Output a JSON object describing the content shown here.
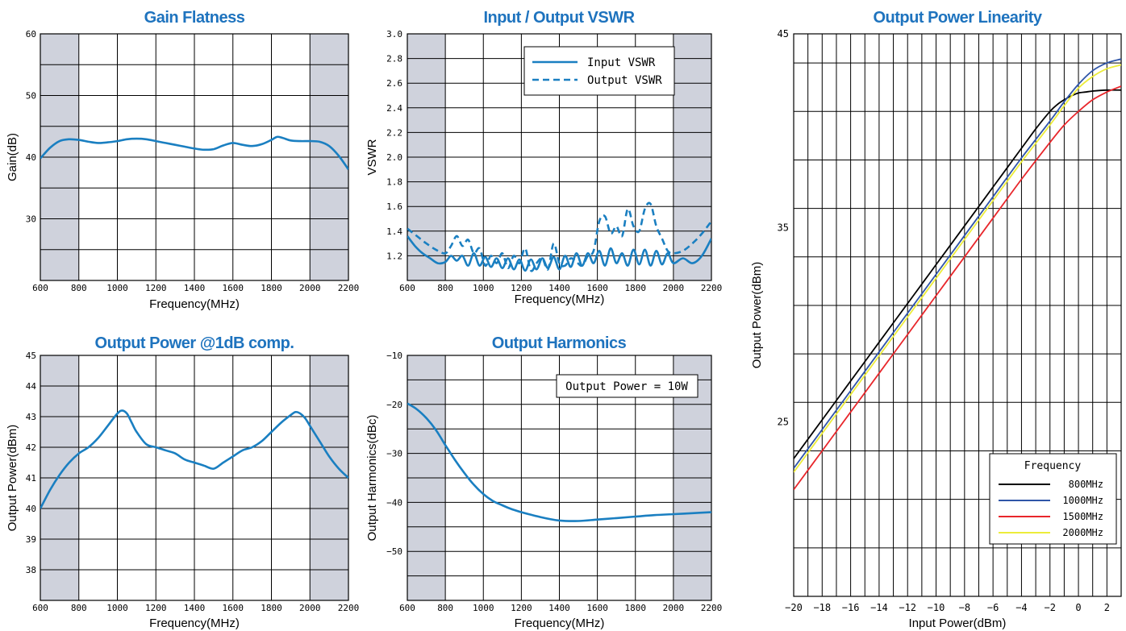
{
  "colors": {
    "title": "#1e73be",
    "line": "#1a7fc1",
    "shade": "#cfd2dc",
    "grid": "#000000",
    "s800": "#000000",
    "s1000": "#2f55a8",
    "s1500": "#e8262b",
    "s2000": "#ecec3a"
  },
  "chart_data": [
    {
      "type": "line",
      "title": "Gain Flatness",
      "xlabel": "Frequency(MHz)",
      "ylabel": "Gain(dB)",
      "xlim": [
        600,
        2200
      ],
      "ylim": [
        20,
        60
      ],
      "xticks": [
        600,
        800,
        1000,
        1200,
        1400,
        1600,
        1800,
        2000,
        2200
      ],
      "xtick_labels": [
        "600",
        "800",
        "1000",
        "1200",
        "1400",
        "1600",
        "1800",
        "2000",
        "2200"
      ],
      "yticks": [
        30,
        40,
        50,
        60
      ],
      "ytick_labels": [
        "30",
        "40",
        "50",
        "60"
      ],
      "grid_y_step": 5,
      "shaded_x": [
        [
          600,
          800
        ],
        [
          2000,
          2200
        ]
      ],
      "series": [
        {
          "dash": false,
          "x": [
            600,
            650,
            700,
            750,
            800,
            850,
            900,
            950,
            1000,
            1050,
            1100,
            1150,
            1200,
            1250,
            1300,
            1350,
            1400,
            1450,
            1500,
            1550,
            1600,
            1650,
            1700,
            1750,
            1800,
            1830,
            1860,
            1900,
            1950,
            2000,
            2050,
            2100,
            2150,
            2200
          ],
          "y": [
            39.8,
            41.5,
            42.6,
            42.9,
            42.8,
            42.5,
            42.3,
            42.4,
            42.6,
            42.9,
            43.0,
            42.9,
            42.6,
            42.3,
            42.0,
            41.7,
            41.4,
            41.2,
            41.3,
            41.9,
            42.3,
            42.0,
            41.8,
            42.1,
            42.8,
            43.3,
            43.1,
            42.7,
            42.6,
            42.6,
            42.5,
            41.8,
            40.2,
            38.0
          ]
        }
      ]
    },
    {
      "type": "line",
      "title": "Input / Output VSWR",
      "xlabel": "Frequency(MHz)",
      "ylabel": "VSWR",
      "xlim": [
        600,
        2200
      ],
      "ylim": [
        1.0,
        3.0
      ],
      "xticks": [
        600,
        800,
        1000,
        1200,
        1400,
        1600,
        1800,
        2000,
        2200
      ],
      "xtick_labels": [
        "600",
        "800",
        "1000",
        "1200",
        "1400",
        "1600",
        "1800",
        "2000",
        "2200"
      ],
      "yticks": [
        1.2,
        1.4,
        1.6,
        1.8,
        2.0,
        2.2,
        2.4,
        2.6,
        2.8,
        3.0
      ],
      "ytick_labels": [
        "1.2",
        "1.4",
        "1.6",
        "1.8",
        "2.0",
        "2.2",
        "2.4",
        "2.6",
        "2.8",
        "3.0"
      ],
      "grid_y_step": 0.2,
      "shaded_x": [
        [
          600,
          800
        ],
        [
          2000,
          2200
        ]
      ],
      "legend": {
        "position": "top-right"
      },
      "series": [
        {
          "name": "Input VSWR",
          "dash": false,
          "x": [
            600,
            640,
            680,
            720,
            760,
            800,
            830,
            860,
            890,
            920,
            950,
            980,
            1010,
            1040,
            1070,
            1100,
            1130,
            1160,
            1190,
            1220,
            1250,
            1280,
            1310,
            1340,
            1370,
            1400,
            1430,
            1460,
            1490,
            1520,
            1550,
            1580,
            1610,
            1640,
            1670,
            1700,
            1730,
            1760,
            1790,
            1820,
            1850,
            1880,
            1910,
            1940,
            1970,
            2000,
            2050,
            2100,
            2150,
            2200
          ],
          "y": [
            1.36,
            1.28,
            1.22,
            1.18,
            1.14,
            1.15,
            1.2,
            1.16,
            1.2,
            1.12,
            1.22,
            1.12,
            1.19,
            1.11,
            1.18,
            1.1,
            1.18,
            1.09,
            1.17,
            1.08,
            1.17,
            1.09,
            1.18,
            1.1,
            1.19,
            1.09,
            1.2,
            1.11,
            1.22,
            1.12,
            1.22,
            1.14,
            1.24,
            1.12,
            1.26,
            1.14,
            1.22,
            1.12,
            1.25,
            1.13,
            1.25,
            1.12,
            1.24,
            1.13,
            1.22,
            1.14,
            1.18,
            1.14,
            1.2,
            1.34
          ]
        },
        {
          "name": "Output VSWR",
          "dash": true,
          "x": [
            600,
            650,
            700,
            750,
            800,
            830,
            860,
            890,
            920,
            950,
            980,
            1010,
            1040,
            1070,
            1100,
            1130,
            1160,
            1190,
            1220,
            1250,
            1280,
            1310,
            1340,
            1370,
            1400,
            1430,
            1460,
            1490,
            1520,
            1550,
            1580,
            1610,
            1640,
            1670,
            1700,
            1730,
            1760,
            1790,
            1820,
            1850,
            1880,
            1910,
            1940,
            1970,
            2000,
            2050,
            2100,
            2150,
            2200
          ],
          "y": [
            1.42,
            1.36,
            1.3,
            1.25,
            1.22,
            1.28,
            1.36,
            1.28,
            1.33,
            1.22,
            1.26,
            1.12,
            1.2,
            1.14,
            1.22,
            1.1,
            1.2,
            1.14,
            1.26,
            1.08,
            1.14,
            1.18,
            1.09,
            1.3,
            1.14,
            1.12,
            1.18,
            1.15,
            1.12,
            1.2,
            1.24,
            1.48,
            1.52,
            1.38,
            1.44,
            1.36,
            1.58,
            1.44,
            1.4,
            1.58,
            1.62,
            1.44,
            1.34,
            1.24,
            1.22,
            1.24,
            1.3,
            1.38,
            1.48
          ]
        }
      ]
    },
    {
      "type": "line",
      "title": "Output Power @1dB comp.",
      "xlabel": "Frequency(MHz)",
      "ylabel": "Output Power(dBm)",
      "xlim": [
        600,
        2200
      ],
      "ylim": [
        37,
        45
      ],
      "xticks": [
        600,
        800,
        1000,
        1200,
        1400,
        1600,
        1800,
        2000,
        2200
      ],
      "xtick_labels": [
        "600",
        "800",
        "1000",
        "1200",
        "1400",
        "1600",
        "1800",
        "2000",
        "2200"
      ],
      "yticks": [
        38,
        39,
        40,
        41,
        42,
        43,
        44,
        45
      ],
      "ytick_labels": [
        "38",
        "39",
        "40",
        "41",
        "42",
        "43",
        "44",
        "45"
      ],
      "grid_y_step": 1,
      "shaded_x": [
        [
          600,
          800
        ],
        [
          2000,
          2200
        ]
      ],
      "series": [
        {
          "dash": false,
          "x": [
            600,
            650,
            700,
            750,
            800,
            850,
            900,
            950,
            1000,
            1025,
            1050,
            1075,
            1100,
            1150,
            1200,
            1250,
            1300,
            1350,
            1400,
            1450,
            1500,
            1550,
            1600,
            1650,
            1700,
            1750,
            1800,
            1850,
            1900,
            1925,
            1950,
            1975,
            2000,
            2050,
            2100,
            2150,
            2200
          ],
          "y": [
            40.0,
            40.6,
            41.1,
            41.5,
            41.8,
            42.0,
            42.3,
            42.7,
            43.1,
            43.2,
            43.1,
            42.8,
            42.5,
            42.1,
            42.0,
            41.9,
            41.8,
            41.6,
            41.5,
            41.4,
            41.3,
            41.5,
            41.7,
            41.9,
            42.0,
            42.2,
            42.5,
            42.8,
            43.05,
            43.15,
            43.1,
            42.95,
            42.7,
            42.2,
            41.7,
            41.3,
            41.0
          ]
        }
      ]
    },
    {
      "type": "line",
      "title": "Output Harmonics",
      "xlabel": "Frequency(MHz)",
      "ylabel": "Output Harmonics(dBc)",
      "xlim": [
        600,
        2200
      ],
      "ylim": [
        -60,
        -10
      ],
      "xticks": [
        600,
        800,
        1000,
        1200,
        1400,
        1600,
        1800,
        2000,
        2200
      ],
      "xtick_labels": [
        "600",
        "800",
        "1000",
        "1200",
        "1400",
        "1600",
        "1800",
        "2000",
        "2200"
      ],
      "yticks": [
        -50,
        -40,
        -30,
        -20,
        -10
      ],
      "ytick_labels": [
        "−50",
        "−40",
        "−30",
        "−20",
        "−10"
      ],
      "grid_y_step": 5,
      "shaded_x": [
        [
          600,
          800
        ],
        [
          2000,
          2200
        ]
      ],
      "annotation": "Output Power = 10W",
      "series": [
        {
          "dash": false,
          "x": [
            600,
            650,
            700,
            750,
            800,
            850,
            900,
            950,
            1000,
            1050,
            1100,
            1150,
            1200,
            1300,
            1400,
            1500,
            1600,
            1700,
            1800,
            1900,
            2000,
            2100,
            2200
          ],
          "y": [
            -19.8,
            -21.0,
            -22.8,
            -25.2,
            -28.3,
            -31.3,
            -34.0,
            -36.4,
            -38.3,
            -39.7,
            -40.6,
            -41.4,
            -42.0,
            -43.0,
            -43.7,
            -43.8,
            -43.5,
            -43.2,
            -42.9,
            -42.6,
            -42.4,
            -42.2,
            -42.0
          ]
        }
      ]
    },
    {
      "type": "line",
      "title": "Output Power Linearity",
      "xlabel": "Input Power(dBm)",
      "ylabel": "Output Power(dBm)",
      "xlim": [
        -20,
        3
      ],
      "ylim": [
        16,
        45
      ],
      "xticks": [
        -20,
        -18,
        -16,
        -14,
        -12,
        -10,
        -8,
        -6,
        -4,
        -2,
        0,
        2
      ],
      "xtick_labels": [
        "−20",
        "−18",
        "−16",
        "−14",
        "−12",
        "−10",
        "−8",
        "−6",
        "−4",
        "−2",
        "0",
        "2"
      ],
      "yticks": [
        25,
        35,
        45
      ],
      "ytick_labels": [
        "25",
        "35",
        "45"
      ],
      "grid_x_step": 1,
      "grid_y_step": 2.5,
      "legend": {
        "title": "Frequency",
        "position": "bottom-right"
      },
      "series": [
        {
          "name": "800MHz",
          "dash": false,
          "color_key": "s800",
          "x": [
            -20,
            -18,
            -16,
            -14,
            -12,
            -10,
            -8,
            -6,
            -4,
            -3,
            -2,
            -1.5,
            -1,
            -0.5,
            0,
            0.5,
            1,
            2,
            3
          ],
          "y": [
            23.1,
            25.1,
            27.1,
            29.1,
            31.1,
            33.1,
            35.1,
            37.1,
            39.1,
            40.1,
            41.0,
            41.35,
            41.6,
            41.8,
            41.95,
            42.0,
            42.05,
            42.1,
            42.1
          ]
        },
        {
          "name": "1000MHz",
          "dash": false,
          "color_key": "s1000",
          "x": [
            -20,
            -18,
            -16,
            -14,
            -12,
            -10,
            -8,
            -6,
            -4,
            -2,
            -1,
            0,
            1,
            2,
            3
          ],
          "y": [
            22.6,
            24.6,
            26.6,
            28.6,
            30.6,
            32.6,
            34.6,
            36.6,
            38.6,
            40.5,
            41.5,
            42.4,
            43.1,
            43.5,
            43.7
          ]
        },
        {
          "name": "1500MHz",
          "dash": false,
          "color_key": "s1500",
          "x": [
            -20,
            -18,
            -16,
            -14,
            -12,
            -10,
            -8,
            -6,
            -4,
            -2,
            -1,
            0,
            1,
            2,
            3
          ],
          "y": [
            21.5,
            23.5,
            25.5,
            27.5,
            29.5,
            31.5,
            33.5,
            35.5,
            37.5,
            39.4,
            40.3,
            41.0,
            41.6,
            42.0,
            42.3
          ]
        },
        {
          "name": "2000MHz",
          "dash": false,
          "color_key": "s2000",
          "x": [
            -20,
            -18,
            -16,
            -14,
            -12,
            -10,
            -8,
            -6,
            -4,
            -2,
            -1,
            0,
            1,
            2,
            3
          ],
          "y": [
            22.4,
            24.4,
            26.4,
            28.4,
            30.4,
            32.4,
            34.4,
            36.4,
            38.4,
            40.3,
            41.3,
            42.2,
            42.8,
            43.2,
            43.4
          ]
        }
      ]
    }
  ]
}
